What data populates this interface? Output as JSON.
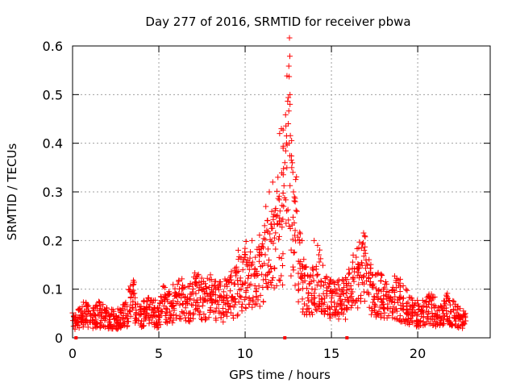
{
  "chart_data": {
    "type": "scatter",
    "title": "Day 277 of 2016, SRMTID for receiver pbwa",
    "xlabel": "GPS time / hours",
    "ylabel": "SRMTID / TECUs",
    "xlim": [
      0,
      24.2
    ],
    "ylim": [
      0,
      0.6
    ],
    "x_ticks": [
      "0",
      "5",
      "10",
      "15",
      "20"
    ],
    "x_tick_values": [
      0,
      5,
      10,
      15,
      20
    ],
    "y_ticks": [
      "0",
      "0.1",
      "0.2",
      "0.3",
      "0.4",
      "0.5",
      "0.6"
    ],
    "y_tick_values": [
      0,
      0.1,
      0.2,
      0.3,
      0.4,
      0.5,
      0.6
    ],
    "grid": true,
    "marker": "+",
    "color": "#ff0000",
    "series": [
      {
        "name": "SRMTID",
        "x": [
          0.1,
          0.3,
          0.5,
          0.7,
          0.9,
          1.1,
          1.3,
          1.5,
          1.7,
          1.9,
          2.1,
          2.3,
          2.5,
          2.7,
          2.9,
          3.1,
          3.3,
          3.5,
          3.7,
          3.9,
          4.1,
          4.3,
          4.5,
          4.7,
          4.9,
          5.1,
          5.3,
          5.5,
          5.7,
          5.9,
          6.1,
          6.3,
          6.5,
          6.7,
          6.9,
          7.1,
          7.3,
          7.5,
          7.7,
          7.9,
          8.1,
          8.3,
          8.5,
          8.7,
          8.9,
          9.1,
          9.3,
          9.5,
          9.7,
          9.9,
          10.1,
          10.3,
          10.5,
          10.7,
          10.9,
          11.1,
          11.3,
          11.5,
          11.7,
          11.9,
          12.1,
          12.3,
          12.5,
          12.7,
          12.9,
          13.1,
          13.3,
          13.5,
          13.7,
          13.9,
          14.1,
          14.3,
          14.5,
          14.7,
          14.9,
          15.1,
          15.3,
          15.5,
          15.7,
          15.9,
          16.1,
          16.3,
          16.5,
          16.7,
          16.9,
          17.1,
          17.3,
          17.5,
          17.7,
          17.9,
          18.1,
          18.3,
          18.5,
          18.7,
          18.9,
          19.1,
          19.3,
          19.5,
          19.7,
          19.9,
          20.1,
          20.3,
          20.5,
          20.7,
          20.9,
          21.1,
          21.3,
          21.5,
          21.7,
          21.9,
          22.1,
          22.3,
          22.5,
          22.7
        ],
        "y": [
          0.035,
          0.04,
          0.045,
          0.05,
          0.045,
          0.04,
          0.045,
          0.05,
          0.045,
          0.04,
          0.035,
          0.04,
          0.035,
          0.04,
          0.045,
          0.05,
          0.07,
          0.085,
          0.06,
          0.045,
          0.05,
          0.055,
          0.06,
          0.05,
          0.045,
          0.06,
          0.07,
          0.065,
          0.06,
          0.075,
          0.085,
          0.08,
          0.075,
          0.07,
          0.08,
          0.09,
          0.085,
          0.08,
          0.075,
          0.085,
          0.09,
          0.08,
          0.075,
          0.07,
          0.08,
          0.085,
          0.09,
          0.1,
          0.11,
          0.12,
          0.13,
          0.12,
          0.11,
          0.13,
          0.14,
          0.15,
          0.16,
          0.17,
          0.18,
          0.2,
          0.24,
          0.3,
          0.43,
          0.28,
          0.22,
          0.15,
          0.11,
          0.1,
          0.09,
          0.095,
          0.11,
          0.12,
          0.1,
          0.09,
          0.08,
          0.075,
          0.08,
          0.085,
          0.09,
          0.08,
          0.1,
          0.11,
          0.12,
          0.13,
          0.14,
          0.11,
          0.1,
          0.095,
          0.09,
          0.085,
          0.08,
          0.075,
          0.08,
          0.085,
          0.08,
          0.07,
          0.065,
          0.06,
          0.055,
          0.05,
          0.045,
          0.05,
          0.055,
          0.06,
          0.055,
          0.05,
          0.045,
          0.055,
          0.06,
          0.055,
          0.05,
          0.045,
          0.04,
          0.04
        ],
        "peak_points": [
          {
            "x": 12.55,
            "y": 0.537
          },
          {
            "x": 12.6,
            "y": 0.5
          },
          {
            "x": 12.6,
            "y": 0.48
          },
          {
            "x": 12.5,
            "y": 0.44
          },
          {
            "x": 12.55,
            "y": 0.4
          },
          {
            "x": 12.1,
            "y": 0.43
          },
          {
            "x": 12.0,
            "y": 0.42
          },
          {
            "x": 12.2,
            "y": 0.39
          },
          {
            "x": 12.3,
            "y": 0.36
          },
          {
            "x": 11.9,
            "y": 0.33
          },
          {
            "x": 11.6,
            "y": 0.32
          },
          {
            "x": 11.4,
            "y": 0.3
          },
          {
            "x": 12.7,
            "y": 0.35
          },
          {
            "x": 12.8,
            "y": 0.3
          },
          {
            "x": 12.9,
            "y": 0.28
          },
          {
            "x": 13.0,
            "y": 0.26
          },
          {
            "x": 11.2,
            "y": 0.27
          },
          {
            "x": 11.8,
            "y": 0.25
          },
          {
            "x": 13.3,
            "y": 0.2
          },
          {
            "x": 14.0,
            "y": 0.2
          },
          {
            "x": 14.2,
            "y": 0.19
          },
          {
            "x": 16.9,
            "y": 0.18
          },
          {
            "x": 10.4,
            "y": 0.2
          },
          {
            "x": 9.6,
            "y": 0.18
          }
        ],
        "axis_markers_x": [
          0.2,
          12.3,
          15.9
        ]
      }
    ]
  }
}
